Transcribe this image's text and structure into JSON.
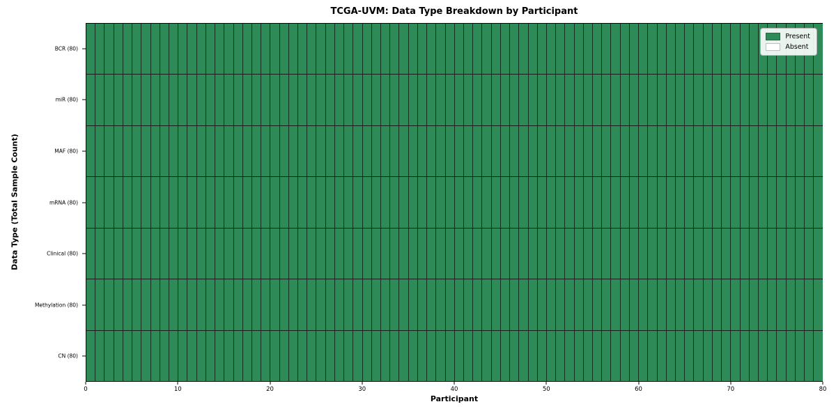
{
  "chart_data": {
    "type": "heatmap",
    "title": "TCGA-UVM: Data Type Breakdown by Participant",
    "xlabel": "Participant",
    "ylabel": "Data Type (Total Sample Count)",
    "xlim": [
      0,
      80
    ],
    "x_ticks": [
      0,
      10,
      20,
      30,
      40,
      50,
      60,
      70,
      80
    ],
    "n_participants": 80,
    "rows": [
      {
        "label": "BCR (80)",
        "data_type": "BCR",
        "total_sample_count": 80,
        "present_participants": 80
      },
      {
        "label": "miR (80)",
        "data_type": "miR",
        "total_sample_count": 80,
        "present_participants": 80
      },
      {
        "label": "MAF (80)",
        "data_type": "MAF",
        "total_sample_count": 80,
        "present_participants": 80
      },
      {
        "label": "mRNA (80)",
        "data_type": "mRNA",
        "total_sample_count": 80,
        "present_participants": 80
      },
      {
        "label": "Clinical (80)",
        "data_type": "Clinical",
        "total_sample_count": 80,
        "present_participants": 80
      },
      {
        "label": "Methylation (80)",
        "data_type": "Methylation",
        "total_sample_count": 80,
        "present_participants": 80
      },
      {
        "label": "CN (80)",
        "data_type": "CN",
        "total_sample_count": 80,
        "present_participants": 80
      }
    ],
    "legend": {
      "position": "upper right",
      "entries": [
        {
          "label": "Present",
          "color": "#2e8b57"
        },
        {
          "label": "Absent",
          "color": "#ffffff"
        }
      ]
    },
    "colors": {
      "present": "#2e8b57",
      "absent": "#ffffff",
      "cell_edge": "#1c1c1c"
    },
    "grid": false
  }
}
